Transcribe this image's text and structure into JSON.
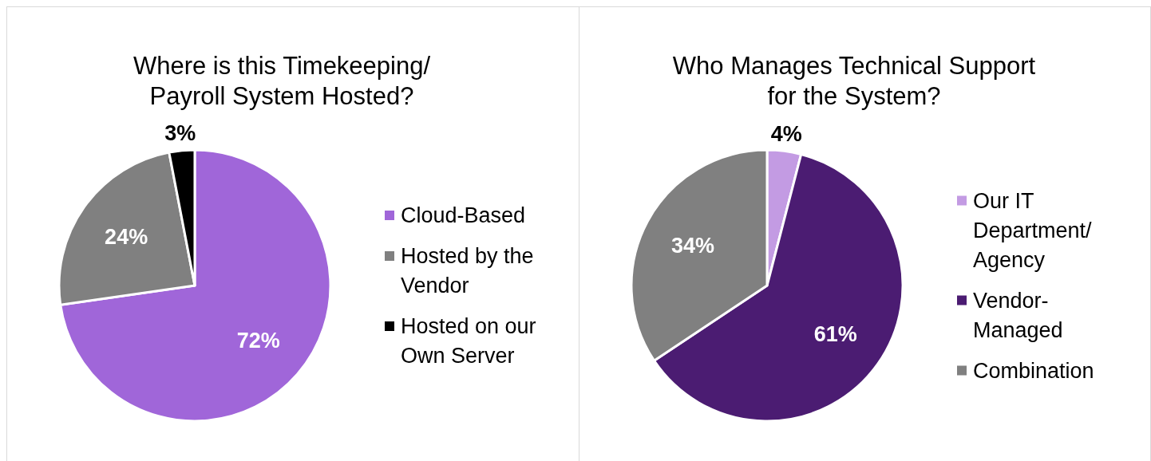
{
  "chart_data": [
    {
      "type": "pie",
      "title": "Where is this Timekeeping/ Payroll System Hosted?",
      "categories": [
        "Cloud-Based",
        "Hosted by the Vendor",
        "Hosted on our Own Server"
      ],
      "values": [
        72,
        24,
        3
      ],
      "colors": [
        "#a066d9",
        "#808080",
        "#000000"
      ],
      "value_labels": [
        "72%",
        "24%",
        "3%"
      ],
      "legend": "right"
    },
    {
      "type": "pie",
      "title": "Who Manages Technical Support for the System?",
      "categories": [
        "Our IT Department/ Agency",
        "Vendor-Managed",
        "Combination"
      ],
      "values": [
        4,
        61,
        34
      ],
      "colors": [
        "#c39be3",
        "#4b1c72",
        "#808080"
      ],
      "value_labels": [
        "4%",
        "61%",
        "34%"
      ],
      "legend": "right"
    }
  ]
}
